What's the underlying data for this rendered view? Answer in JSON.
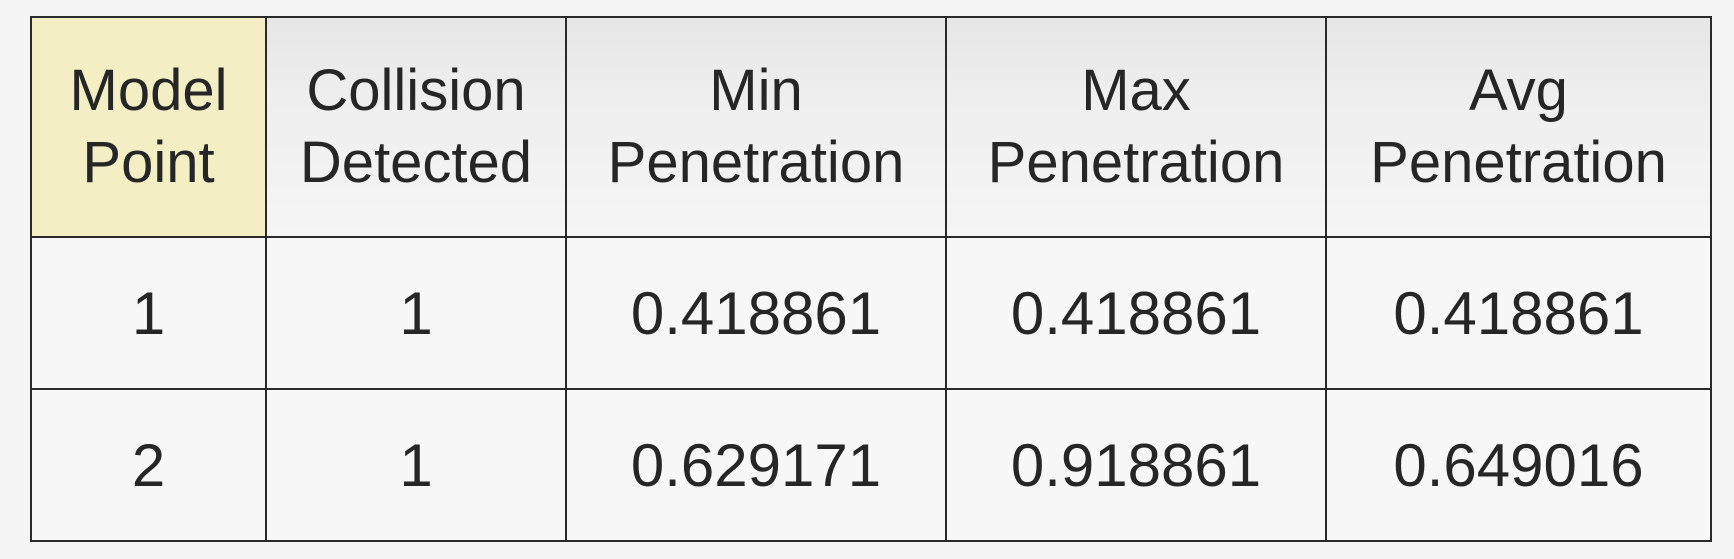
{
  "table": {
    "headers": [
      {
        "line1": "Model",
        "line2": "Point"
      },
      {
        "line1": "Collision",
        "line2": "Detected"
      },
      {
        "line1": "Min",
        "line2": "Penetration"
      },
      {
        "line1": "Max",
        "line2": "Penetration"
      },
      {
        "line1": "Avg",
        "line2": "Penetration"
      }
    ],
    "rows": [
      [
        "1",
        "1",
        "0.418861",
        "0.418861",
        "0.418861"
      ],
      [
        "2",
        "1",
        "0.629171",
        "0.918861",
        "0.649016"
      ]
    ],
    "highlight_header_color": "#f3eec3"
  }
}
